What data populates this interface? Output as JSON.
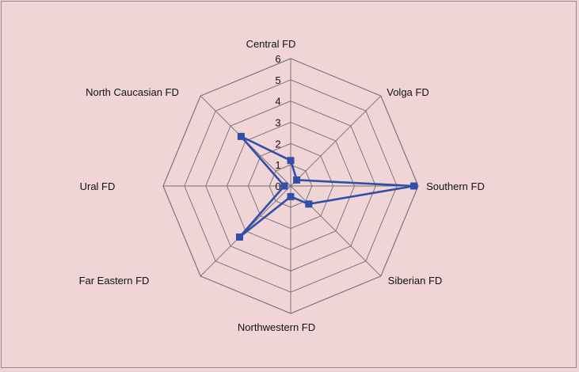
{
  "chart_data": {
    "type": "radar",
    "categories": [
      "Central FD",
      "Volga FD",
      "Southern FD",
      "Siberian FD",
      "Northwestern FD",
      "Far Eastern FD",
      "Ural FD",
      "North Caucasian FD"
    ],
    "series": [
      {
        "values": [
          1.2,
          0.4,
          5.8,
          1.2,
          0.5,
          3.4,
          0.3,
          3.3
        ]
      }
    ],
    "rlim": [
      0,
      6
    ],
    "ticks": [
      "0",
      "1",
      "2",
      "3",
      "4",
      "5",
      "6"
    ],
    "grid": true,
    "legend": "none",
    "series_color": "#2f4fa8",
    "grid_color": "#6e6e6e"
  }
}
